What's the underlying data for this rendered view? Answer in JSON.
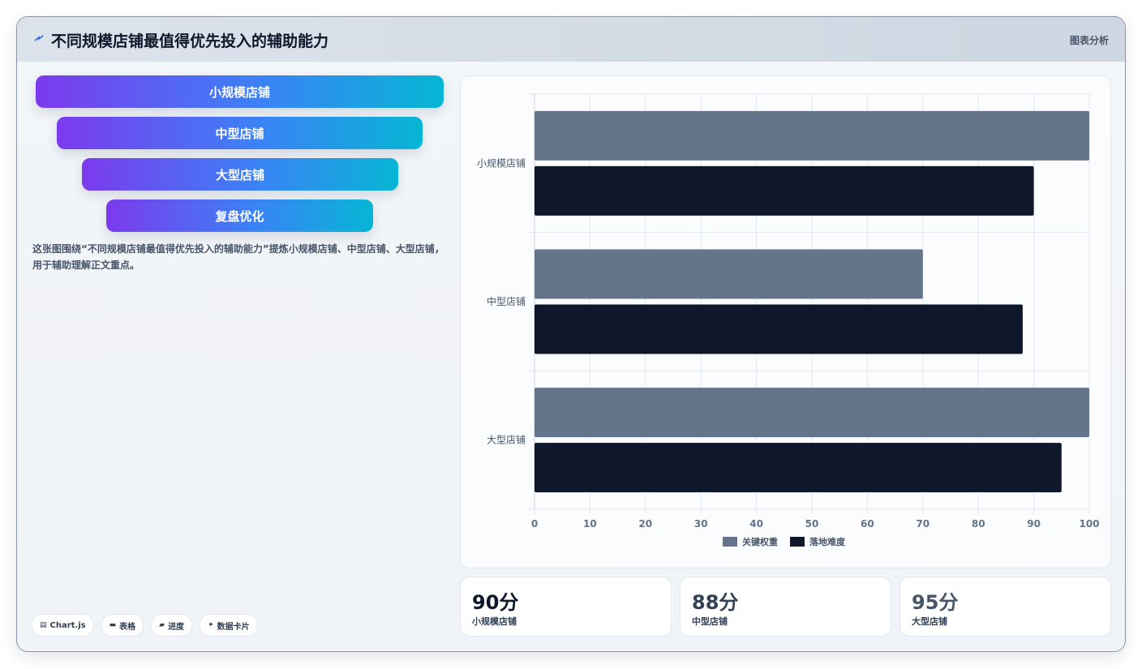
{
  "header": {
    "title": "不同规模店铺最值得优先投入的辅助能力",
    "tag": "图表分析",
    "icon": "lightning-icon"
  },
  "funnel": [
    {
      "label": "小规模店铺"
    },
    {
      "label": "中型店铺"
    },
    {
      "label": "大型店铺"
    },
    {
      "label": "复盘优化"
    }
  ],
  "description": "这张图围绕“不同规模店铺最值得优先投入的辅助能力”提炼小规模店铺、中型店铺、大型店铺，用于辅助理解正文重点。",
  "pills": [
    {
      "icon": "chart-icon",
      "glyph": "▤",
      "label": "Chart.js"
    },
    {
      "icon": "table-icon",
      "glyph": "▬",
      "label": "表格"
    },
    {
      "icon": "progress-icon",
      "glyph": "▰",
      "label": "进度"
    },
    {
      "icon": "sparkle-icon",
      "glyph": "✦",
      "label": "数据卡片"
    }
  ],
  "chart_data": {
    "type": "bar",
    "orientation": "horizontal",
    "categories": [
      "小规模店铺",
      "中型店铺",
      "大型店铺"
    ],
    "series": [
      {
        "name": "关键权重",
        "values": [
          100,
          70,
          100
        ],
        "color": "#64748b"
      },
      {
        "name": "落地难度",
        "values": [
          90,
          88,
          95
        ],
        "color": "#0f172a"
      }
    ],
    "xlim": [
      0,
      100
    ],
    "xticks": [
      0,
      10,
      20,
      30,
      40,
      50,
      60,
      70,
      80,
      90,
      100
    ],
    "grid": true,
    "legend_position": "bottom"
  },
  "kpis": [
    {
      "value": "90分",
      "label": "小规模店铺",
      "color": "#0f172a"
    },
    {
      "value": "88分",
      "label": "中型店铺",
      "color": "#334155"
    },
    {
      "value": "95分",
      "label": "大型店铺",
      "color": "#475569"
    }
  ]
}
